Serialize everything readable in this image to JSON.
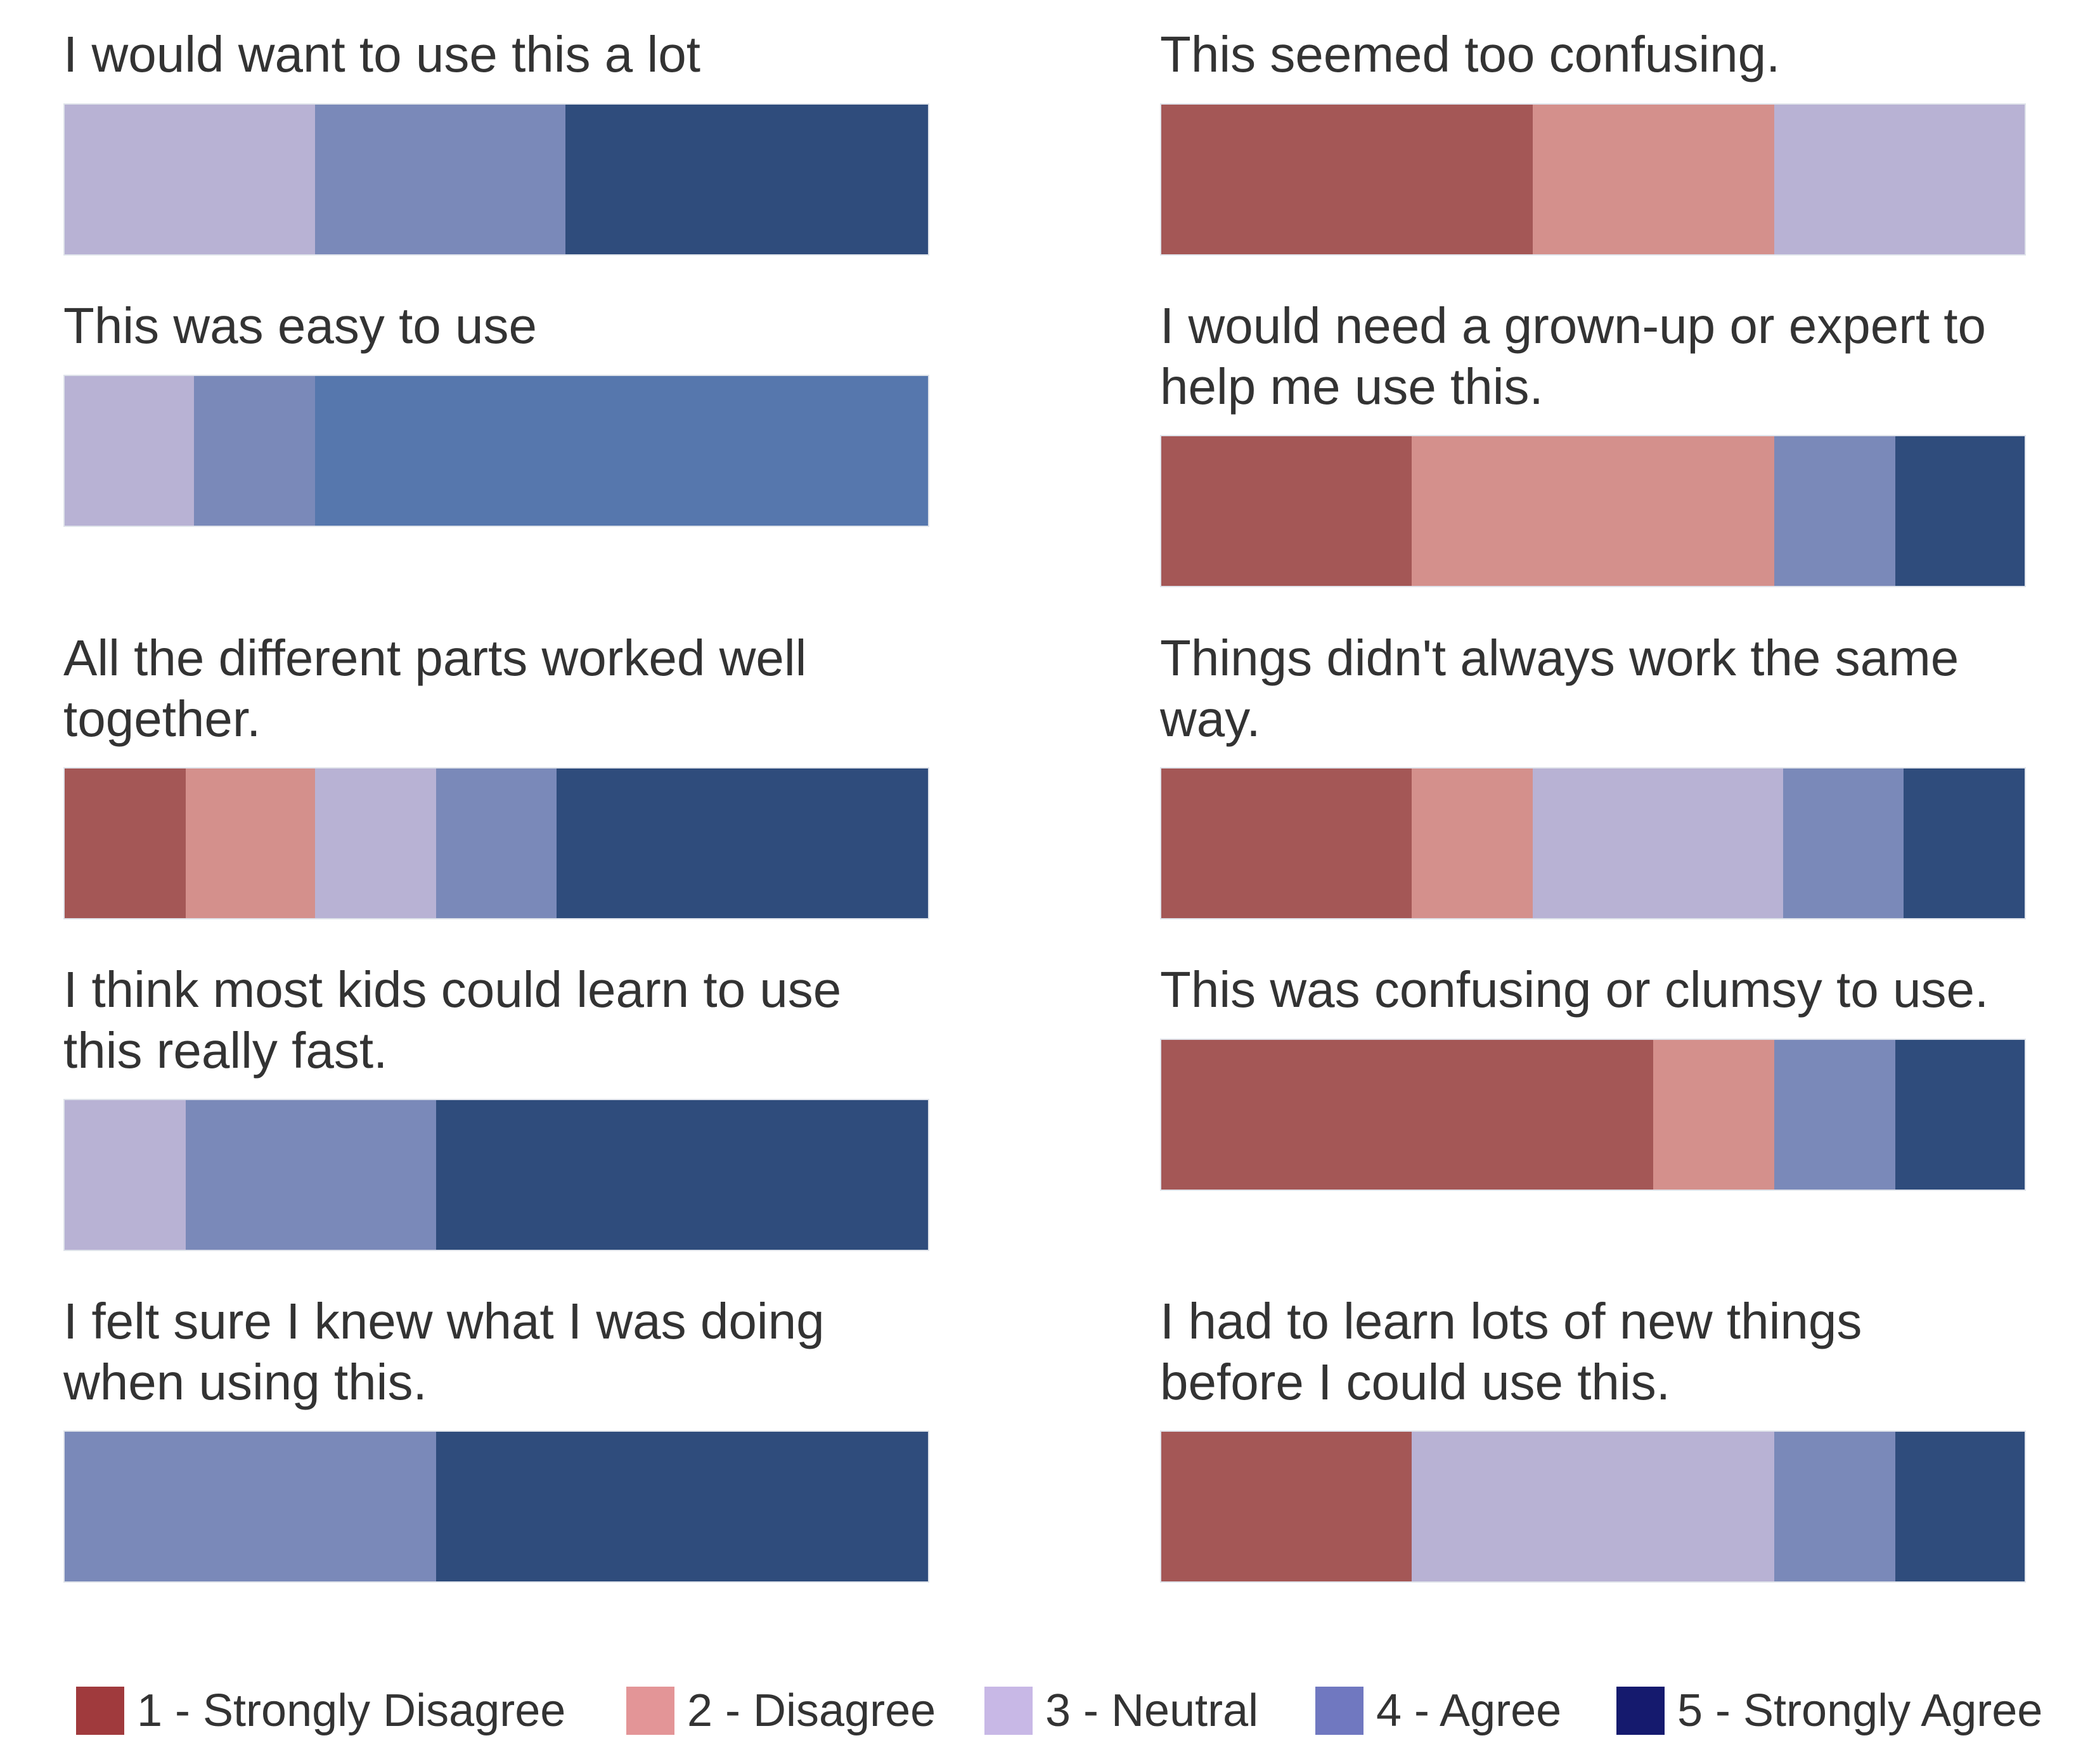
{
  "chart_data": {
    "type": "stacked-bar-100",
    "unit": "percent of responses",
    "categories": [
      "1 - Strongly Disagree",
      "2 - Disagree",
      "3 - Neutral",
      "4 - Agree",
      "5 - Strongly Agree"
    ],
    "legend_colors": [
      "#a03a3d",
      "#e39597",
      "#c8b8e6",
      "#7078c0",
      "#151a6e"
    ],
    "segment_colors": [
      "#a45756",
      "#d4908c",
      "#b8b2d4",
      "#7a89b9",
      "#2f4c7c"
    ],
    "questions": [
      {
        "id": "q1",
        "text": "I would want to use this a lot",
        "values": [
          0,
          0,
          29,
          29,
          42
        ]
      },
      {
        "id": "q2",
        "text": "This was easy to use",
        "values": [
          0,
          0,
          15,
          14,
          71
        ],
        "segment_color_overrides": {
          "4": "#5677ad"
        }
      },
      {
        "id": "q3",
        "text": "All the different parts worked well together.",
        "values": [
          14,
          15,
          14,
          14,
          43
        ]
      },
      {
        "id": "q4",
        "text": "I think most kids could learn to use this really fast.",
        "values": [
          0,
          0,
          14,
          29,
          57
        ]
      },
      {
        "id": "q5",
        "text": "I felt sure I knew what I was doing when using this.",
        "values": [
          0,
          0,
          0,
          43,
          57
        ]
      },
      {
        "id": "q6",
        "text": "This seemed too confusing.",
        "values": [
          43,
          28,
          29,
          0,
          0
        ]
      },
      {
        "id": "q7",
        "text": "I would need a grown-up or expert to help me use this.",
        "values": [
          29,
          42,
          0,
          14,
          15
        ],
        "note": "neutral segment drawn before disagree? no"
      },
      {
        "id": "q8",
        "text": "Things didn't always work the same way.",
        "values": [
          29,
          14,
          29,
          14,
          14
        ]
      },
      {
        "id": "q9",
        "text": "This was confusing or clumsy to use.",
        "values": [
          57,
          14,
          0,
          14,
          15
        ]
      },
      {
        "id": "q10",
        "text": "I had to learn lots of new things before I could use this.",
        "values": [
          29,
          0,
          42,
          14,
          15
        ]
      }
    ]
  }
}
